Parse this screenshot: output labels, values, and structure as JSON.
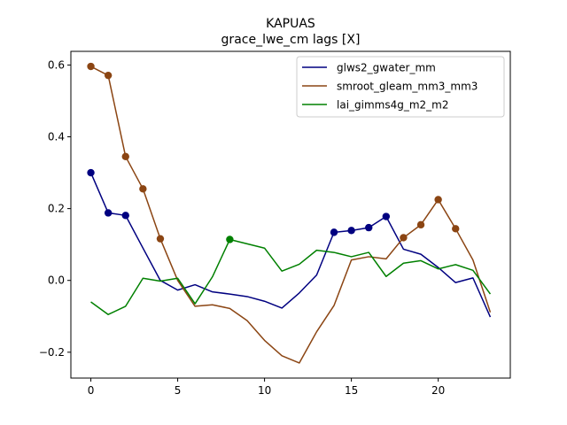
{
  "chart_data": {
    "type": "line",
    "title": "KAPUAS",
    "subtitle": "grace_lwe_cm lags [X]",
    "xlabel": "",
    "ylabel": "",
    "xlim": [
      -1.15,
      24.15
    ],
    "ylim": [
      -0.272,
      0.638
    ],
    "xticks": [
      0,
      5,
      10,
      15,
      20
    ],
    "yticks": [
      -0.2,
      0.0,
      0.2,
      0.4,
      0.6
    ],
    "ytick_labels": [
      "−0.2",
      "0.0",
      "0.2",
      "0.4",
      "0.6"
    ],
    "grid": false,
    "legend_position": "top-right",
    "x": [
      0,
      1,
      2,
      3,
      4,
      5,
      6,
      7,
      8,
      9,
      10,
      11,
      12,
      13,
      14,
      15,
      16,
      17,
      18,
      19,
      20,
      21,
      22,
      23
    ],
    "series": [
      {
        "name": "glws2_gwater_mm",
        "color": "#000080",
        "values": [
          0.3,
          0.188,
          0.181,
          0.09,
          0.0,
          -0.027,
          -0.012,
          -0.032,
          -0.038,
          -0.045,
          -0.058,
          -0.077,
          -0.035,
          0.015,
          0.134,
          0.139,
          0.147,
          0.178,
          0.087,
          0.073,
          0.036,
          -0.006,
          0.007,
          -0.102
        ],
        "markers": [
          0,
          1,
          2,
          14,
          15,
          16,
          17
        ]
      },
      {
        "name": "smroot_gleam_mm3_mm3",
        "color": "#8B4513",
        "values": [
          0.596,
          0.571,
          0.345,
          0.255,
          0.116,
          0.0,
          -0.072,
          -0.068,
          -0.078,
          -0.112,
          -0.167,
          -0.21,
          -0.23,
          -0.143,
          -0.07,
          0.057,
          0.066,
          0.06,
          0.119,
          0.155,
          0.225,
          0.144,
          0.057,
          -0.089
        ],
        "markers": [
          0,
          1,
          2,
          3,
          4,
          18,
          19,
          20,
          21
        ]
      },
      {
        "name": "lai_gimms4g_m2_m2",
        "color": "#008000",
        "values": [
          -0.06,
          -0.095,
          -0.072,
          0.006,
          -0.002,
          0.006,
          -0.065,
          0.01,
          0.114,
          0.102,
          0.09,
          0.026,
          0.045,
          0.084,
          0.078,
          0.066,
          0.078,
          0.011,
          0.048,
          0.055,
          0.032,
          0.044,
          0.028,
          -0.038
        ],
        "markers": [
          8
        ]
      }
    ]
  }
}
